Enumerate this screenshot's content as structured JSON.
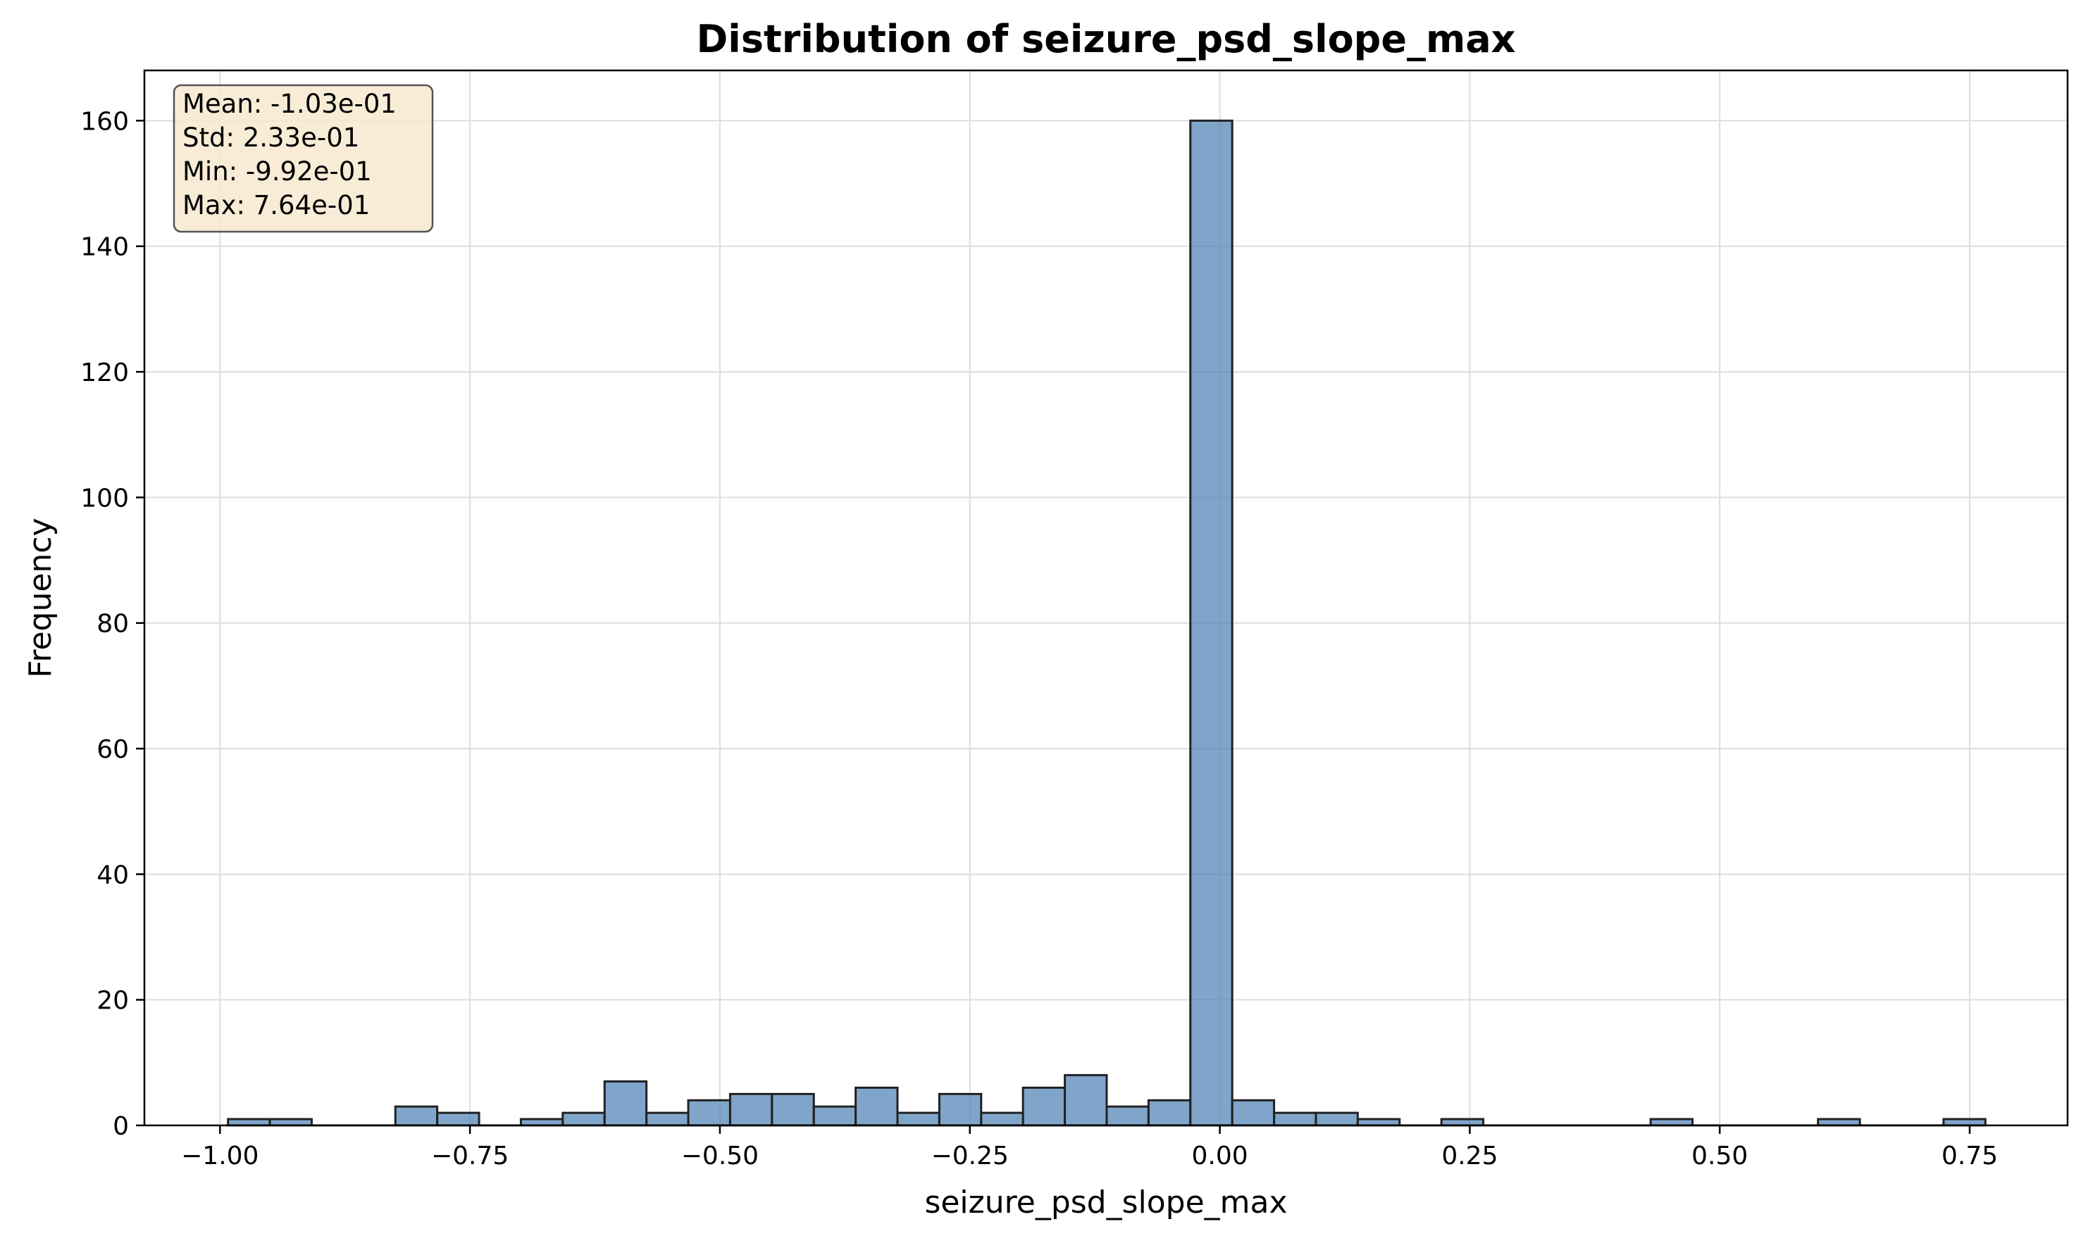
{
  "chart_data": {
    "type": "bar",
    "title": "Distribution of seizure_psd_slope_max",
    "xlabel": "seizure_psd_slope_max",
    "ylabel": "Frequency",
    "xlim": [
      -1.0756,
      0.8479
    ],
    "ylim": [
      0,
      168
    ],
    "grid": true,
    "bar_color": "#4a7fb5",
    "bar_edge_color": "#222222",
    "grid_color": "#dddddd",
    "x_ticks": [
      {
        "value": -1.0,
        "label": "−1.00"
      },
      {
        "value": -0.75,
        "label": "−0.75"
      },
      {
        "value": -0.5,
        "label": "−0.50"
      },
      {
        "value": -0.25,
        "label": "−0.25"
      },
      {
        "value": 0.0,
        "label": "0.00"
      },
      {
        "value": 0.25,
        "label": "0.25"
      },
      {
        "value": 0.5,
        "label": "0.50"
      },
      {
        "value": 0.75,
        "label": "0.75"
      }
    ],
    "y_ticks": [
      {
        "value": 0,
        "label": "0"
      },
      {
        "value": 20,
        "label": "20"
      },
      {
        "value": 40,
        "label": "40"
      },
      {
        "value": 60,
        "label": "60"
      },
      {
        "value": 80,
        "label": "80"
      },
      {
        "value": 100,
        "label": "100"
      },
      {
        "value": 120,
        "label": "120"
      },
      {
        "value": 140,
        "label": "140"
      },
      {
        "value": 160,
        "label": "160"
      }
    ],
    "bin_start": -0.992,
    "bin_width": 0.04185,
    "counts": [
      1,
      1,
      0,
      0,
      3,
      2,
      0,
      1,
      2,
      7,
      2,
      4,
      5,
      5,
      3,
      6,
      2,
      5,
      2,
      6,
      8,
      3,
      4,
      160,
      4,
      2,
      2,
      1,
      0,
      1,
      0,
      0,
      0,
      0,
      1,
      0,
      0,
      0,
      1,
      0,
      0,
      1
    ],
    "stats_box": {
      "position": "top-left",
      "background": "#f7e9d0",
      "lines": [
        "Mean: -1.03e-01",
        "Std: 2.33e-01",
        "Min: -9.92e-01",
        "Max: 7.64e-01"
      ]
    }
  }
}
